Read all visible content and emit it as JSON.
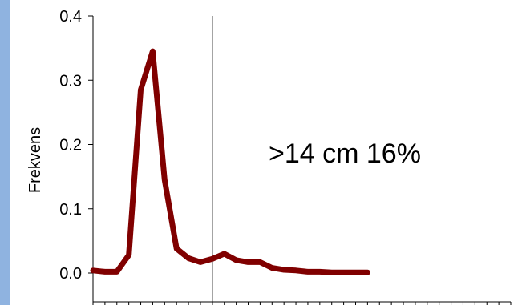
{
  "chart_data": {
    "type": "line",
    "ylabel": "Frekvens",
    "xlabel": "",
    "ylim": [
      0,
      0.4
    ],
    "yticks": [
      "0.0",
      "0.1",
      "0.2",
      "0.3",
      "0.4"
    ],
    "x_tick_count": 36,
    "marker_index": 10,
    "annotation": ">14 cm 16%",
    "colors": {
      "line": "#800000",
      "axis": "#000000",
      "strip": "#8fb3e0"
    },
    "series": [
      {
        "values": [
          0.004,
          0.002,
          0.002,
          0.028,
          0.285,
          0.345,
          0.145,
          0.038,
          0.023,
          0.017,
          0.022,
          0.03,
          0.02,
          0.017,
          0.017,
          0.008,
          0.005,
          0.004,
          0.002,
          0.002,
          0.001,
          0.001,
          0.001,
          0.001
        ]
      }
    ]
  }
}
